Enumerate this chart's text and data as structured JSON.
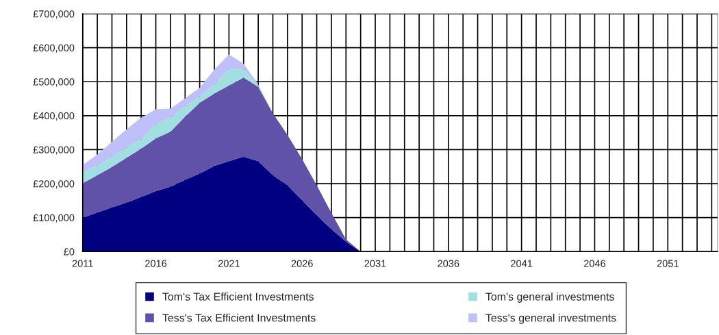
{
  "chart_data": {
    "type": "area",
    "stacked": true,
    "x": [
      2011,
      2012,
      2013,
      2014,
      2015,
      2016,
      2017,
      2018,
      2019,
      2020,
      2021,
      2022,
      2023,
      2024,
      2025,
      2026,
      2027,
      2028,
      2029,
      2030
    ],
    "series": [
      {
        "name": "Tom's Tax Efficient Investments",
        "color": "#000080",
        "values": [
          100000,
          115000,
          130000,
          144000,
          161000,
          178000,
          191000,
          211000,
          230000,
          252000,
          266000,
          279000,
          266000,
          225000,
          195000,
          151000,
          107000,
          66000,
          29000,
          0
        ]
      },
      {
        "name": "Tess's Tax Efficient Investments",
        "color": "#6052a8",
        "values": [
          101000,
          110000,
          119000,
          132000,
          142000,
          155000,
          162000,
          186000,
          208000,
          213000,
          223000,
          233000,
          219000,
          182000,
          148000,
          121000,
          88000,
          48000,
          7000,
          0
        ]
      },
      {
        "name": "Tom's general investments",
        "color": "#a0e0e0",
        "values": [
          34000,
          27000,
          30000,
          30000,
          27000,
          41000,
          41000,
          31000,
          17000,
          27000,
          49000,
          24000,
          4000,
          0,
          0,
          0,
          0,
          0,
          0,
          0
        ]
      },
      {
        "name": "Tess's general investments",
        "color": "#c0c0f8",
        "values": [
          20000,
          34000,
          44000,
          54000,
          64000,
          45000,
          27000,
          23000,
          27000,
          44000,
          42000,
          17000,
          3000,
          0,
          0,
          0,
          0,
          0,
          0,
          0
        ]
      }
    ],
    "xlim": [
      2011,
      2054.4
    ],
    "xticks": [
      2011,
      {
        "value": 2012,
        "label": null
      },
      {
        "value": 2013,
        "label": null
      },
      {
        "value": 2014,
        "label": null
      },
      {
        "value": 2015,
        "label": null
      },
      2016,
      {
        "value": 2017,
        "label": null
      },
      {
        "value": 2018,
        "label": null
      },
      {
        "value": 2019,
        "label": null
      },
      {
        "value": 2020,
        "label": null
      },
      2021,
      {
        "value": 2022,
        "label": null
      },
      {
        "value": 2023,
        "label": null
      },
      {
        "value": 2024,
        "label": null
      },
      {
        "value": 2025,
        "label": null
      },
      2026,
      {
        "value": 2027,
        "label": null
      },
      {
        "value": 2028,
        "label": null
      },
      {
        "value": 2029,
        "label": null
      },
      {
        "value": 2030,
        "label": null
      },
      2031,
      {
        "value": 2032,
        "label": null
      },
      {
        "value": 2033,
        "label": null
      },
      {
        "value": 2034,
        "label": null
      },
      {
        "value": 2035,
        "label": null
      },
      2036,
      {
        "value": 2037,
        "label": null
      },
      {
        "value": 2038,
        "label": null
      },
      {
        "value": 2039,
        "label": null
      },
      {
        "value": 2040,
        "label": null
      },
      2041,
      {
        "value": 2042,
        "label": null
      },
      {
        "value": 2043,
        "label": null
      },
      {
        "value": 2044,
        "label": null
      },
      {
        "value": 2045,
        "label": null
      },
      2046,
      {
        "value": 2047,
        "label": null
      },
      {
        "value": 2048,
        "label": null
      },
      {
        "value": 2049,
        "label": null
      },
      {
        "value": 2050,
        "label": null
      },
      2051,
      {
        "value": 2052,
        "label": null
      },
      {
        "value": 2053,
        "label": null
      },
      {
        "value": 2054,
        "label": null
      }
    ],
    "ylim": [
      0,
      700000
    ],
    "yticks": [
      {
        "value": 0,
        "label": "£0"
      },
      {
        "value": 100000,
        "label": "£100,000"
      },
      {
        "value": 200000,
        "label": "£200,000"
      },
      {
        "value": 300000,
        "label": "£300,000"
      },
      {
        "value": 400000,
        "label": "£400,000"
      },
      {
        "value": 500000,
        "label": "£500,000"
      },
      {
        "value": 600000,
        "label": "£600,000"
      },
      {
        "value": 700000,
        "label": "£700,000"
      }
    ],
    "grid": true,
    "legend": "bottom"
  }
}
